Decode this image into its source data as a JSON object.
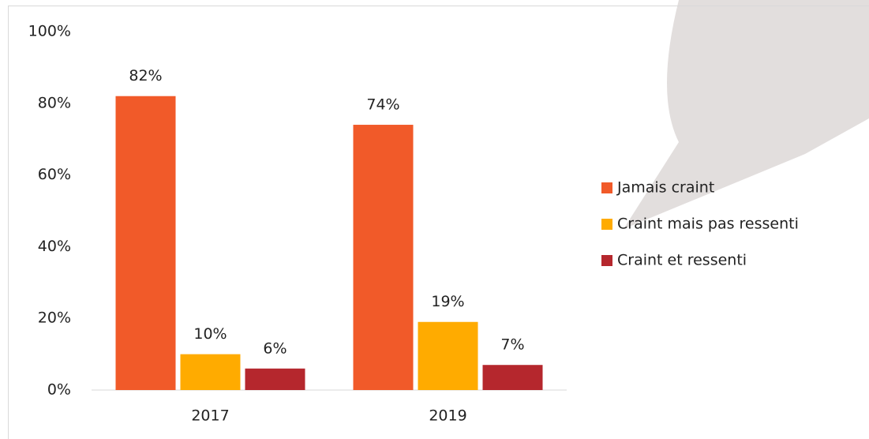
{
  "chart_data": {
    "type": "bar",
    "categories": [
      "2017",
      "2019"
    ],
    "series": [
      {
        "name": "Jamais craint",
        "color": "#f15a29",
        "values": [
          82,
          74
        ],
        "value_labels": [
          "82%",
          "74%"
        ]
      },
      {
        "name": "Craint mais pas ressenti",
        "color": "#ffab00",
        "values": [
          10,
          19
        ],
        "value_labels": [
          "10%",
          "19%"
        ]
      },
      {
        "name": "Craint et ressenti",
        "color": "#b5272d",
        "values": [
          6,
          7
        ],
        "value_labels": [
          "6%",
          "7%"
        ]
      }
    ],
    "ylim": [
      0,
      100
    ],
    "yticks": [
      {
        "value": 0,
        "label": "0%"
      },
      {
        "value": 20,
        "label": "20%"
      },
      {
        "value": 40,
        "label": "40%"
      },
      {
        "value": 60,
        "label": "60%"
      },
      {
        "value": 80,
        "label": "80%"
      },
      {
        "value": 100,
        "label": "100%"
      }
    ],
    "grid": false,
    "legend": "right"
  }
}
